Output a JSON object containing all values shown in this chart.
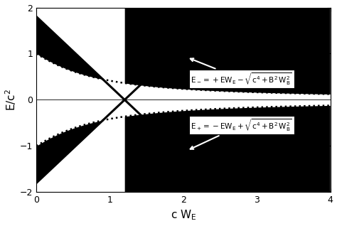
{
  "xlim": [
    0,
    4
  ],
  "ylim": [
    -2,
    2
  ],
  "xlabel": "c W$_{\\rm E}$",
  "ylabel": "E/c$^2$",
  "xticks": [
    0,
    1,
    2,
    3,
    4
  ],
  "yticks": [
    -2,
    -1,
    0,
    1,
    2
  ],
  "B": 1.0,
  "c": 1.0,
  "line_cross_x": 1.2,
  "line_slope": 1.5,
  "hatch_density": "||||||||||||||||",
  "figsize": [
    4.74,
    3.18
  ],
  "dpi": 100
}
